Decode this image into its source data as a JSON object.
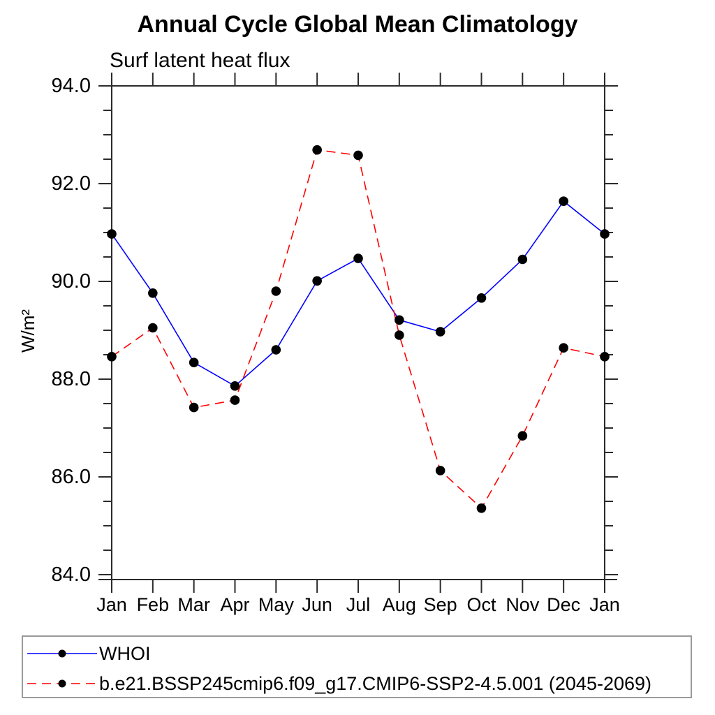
{
  "chart_data": {
    "type": "line",
    "title": "Annual Cycle Global Mean Climatology",
    "subtitle": "Surf latent heat flux",
    "ylabel": "W/m²",
    "xlabel": "",
    "categories": [
      "Jan",
      "Feb",
      "Mar",
      "Apr",
      "May",
      "Jun",
      "Jul",
      "Aug",
      "Sep",
      "Oct",
      "Nov",
      "Dec",
      "Jan"
    ],
    "ylim": [
      83.9,
      94.0
    ],
    "ytick_values": [
      84,
      86,
      88,
      90,
      92,
      94
    ],
    "ytick_labels": [
      "84.0",
      "86.0",
      "88.0",
      "90.0",
      "92.0",
      "94.0"
    ],
    "yminor_step": 0.5,
    "grid": false,
    "legend_position": "bottom-left-box",
    "axis_color": "#2b2b2b",
    "marker": "filled-circle",
    "marker_color": "#000000",
    "series": [
      {
        "name": "WHOI",
        "color": "#0000ff",
        "line_style": "solid",
        "values": [
          90.97,
          89.76,
          88.34,
          87.86,
          88.6,
          90.01,
          90.47,
          89.21,
          88.97,
          89.66,
          90.45,
          91.64,
          90.97
        ]
      },
      {
        "name": "b.e21.BSSP245cmip6.f09_g17.CMIP6-SSP2-4.5.001 (2045-2069)",
        "color": "#ff0000",
        "line_style": "dashed",
        "values": [
          88.46,
          89.05,
          87.42,
          87.57,
          89.8,
          92.69,
          92.58,
          88.9,
          86.13,
          85.36,
          86.84,
          88.64,
          88.46
        ]
      }
    ]
  }
}
